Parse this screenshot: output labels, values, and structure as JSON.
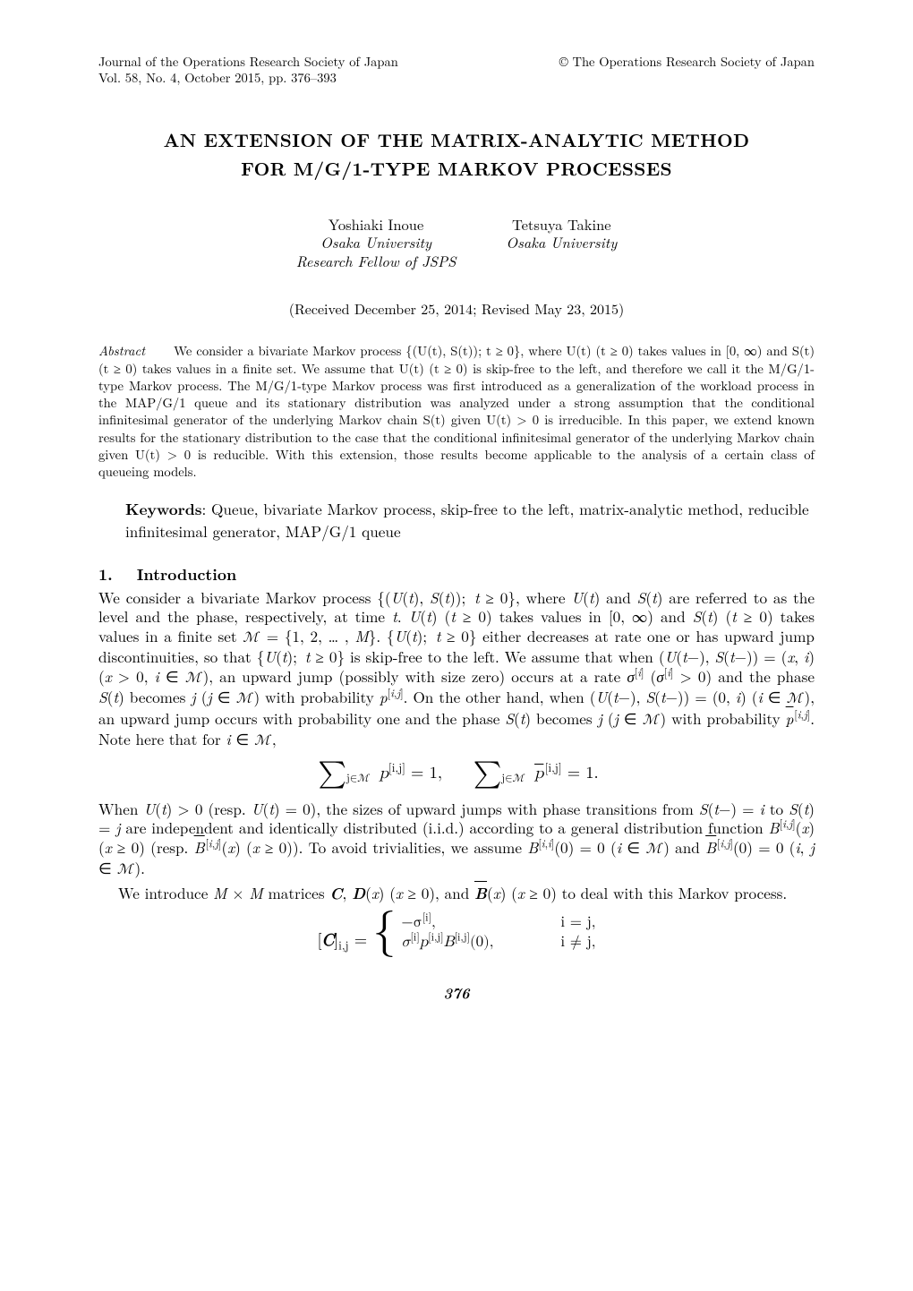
{
  "colors": {
    "text": "#000000",
    "background": "#ffffff"
  },
  "typography": {
    "body_fontsize_pt": 11,
    "abstract_fontsize_pt": 9,
    "title_fontsize_pt": 13,
    "header_fontsize_pt": 9,
    "author_fontsize_pt": 10.5
  },
  "header": {
    "journal_line1": "Journal of the Operations Research Society of Japan",
    "journal_line2": "Vol. 58, No. 4, October 2015, pp. 376–393",
    "copyright": "© The Operations Research Society of Japan"
  },
  "title": {
    "line1": "AN EXTENSION OF THE MATRIX-ANALYTIC METHOD",
    "line2": "FOR M/G/1-TYPE MARKOV PROCESSES"
  },
  "authors": [
    {
      "name": "Yoshiaki Inoue",
      "affil1": "Osaka University",
      "affil2": "Research Fellow of JSPS"
    },
    {
      "name": "Tetsuya Takine",
      "affil1": "Osaka University",
      "affil2": ""
    }
  ],
  "received": "(Received December 25, 2014; Revised May 23, 2015)",
  "abstract": {
    "label": "Abstract",
    "text": "We consider a bivariate Markov process {(U(t), S(t)); t ≥ 0}, where U(t) (t ≥ 0) takes values in [0, ∞) and S(t) (t ≥ 0) takes values in a finite set. We assume that U(t) (t ≥ 0) is skip-free to the left, and therefore we call it the M/G/1-type Markov process. The M/G/1-type Markov process was first introduced as a generalization of the workload process in the MAP/G/1 queue and its stationary distribution was analyzed under a strong assumption that the conditional infinitesimal generator of the underlying Markov chain S(t) given U(t) > 0 is irreducible. In this paper, we extend known results for the stationary distribution to the case that the conditional infinitesimal generator of the underlying Markov chain given U(t) > 0 is reducible. With this extension, those results become applicable to the analysis of a certain class of queueing models."
  },
  "keywords": {
    "label": "Keywords",
    "text": ": Queue, bivariate Markov process, skip-free to the left, matrix-analytic method, reducible infinitesimal generator, MAP/G/1 queue"
  },
  "section": {
    "num": "1.",
    "title": "Introduction"
  },
  "pagenum": "376",
  "math": {
    "eq1": {
      "sum_index": "j∈ℳ",
      "term1": "p",
      "super1": "[i,j]",
      "eq": " = 1,",
      "term2_over": "p",
      "super2": "[i,j]",
      "eq2": " = 1."
    },
    "cases": {
      "lhs": "[C]",
      "lhs_sub": "i,j",
      "eq": " = ",
      "row1_l": "−σ",
      "row1_l_sup": "[i]",
      "row1_l_tail": ",",
      "row1_r": "i = j,",
      "row2_l_a": "σ",
      "row2_l_a_sup": "[i]",
      "row2_l_b": "p",
      "row2_l_b_sup": "[i,j]",
      "row2_l_c": "B",
      "row2_l_c_sup": "[i,j]",
      "row2_l_tail": "(0),",
      "row2_r": "i ≠ j,"
    }
  }
}
